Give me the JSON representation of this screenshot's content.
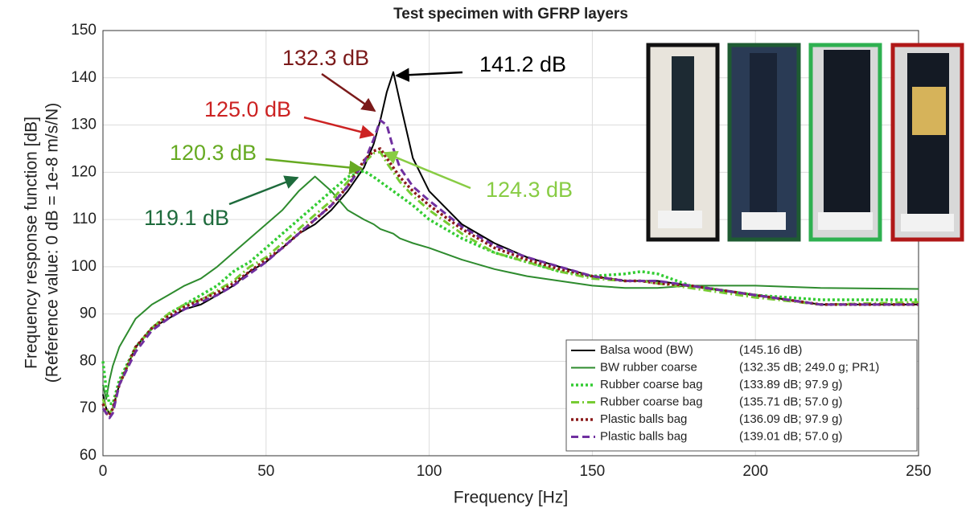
{
  "chart_data": {
    "type": "line",
    "title": "Test specimen with GFRP layers",
    "xlabel": "Frequency [Hz]",
    "ylabel": [
      "Frequency response function [dB]",
      "(Reference value: 0 dB = 1e-8 m/s/N)"
    ],
    "xlim": [
      0,
      250
    ],
    "ylim": [
      60,
      150
    ],
    "xticks": [
      0,
      50,
      100,
      150,
      200,
      250
    ],
    "yticks": [
      60,
      70,
      80,
      90,
      100,
      110,
      120,
      130,
      140,
      150
    ],
    "grid": true,
    "legend": "lower right",
    "x": [
      0,
      1,
      2,
      3,
      5,
      10,
      15,
      20,
      25,
      30,
      35,
      40,
      45,
      50,
      55,
      60,
      65,
      70,
      75,
      80,
      83,
      85,
      87,
      89,
      91,
      95,
      100,
      110,
      120,
      130,
      140,
      150,
      160,
      165,
      170,
      180,
      190,
      200,
      220,
      250
    ],
    "series": [
      {
        "name": "Balsa wood (BW)",
        "note": "(145.16 dB)",
        "color": "#000000",
        "style": "solid",
        "values": [
          73,
          70,
          69,
          70,
          75,
          83,
          87,
          89,
          91,
          92,
          94,
          96,
          99,
          101,
          104,
          107,
          109,
          112,
          116,
          121,
          126,
          131,
          137,
          141.2,
          135,
          123,
          116,
          109,
          105,
          102,
          100,
          98,
          97,
          97,
          97,
          96,
          95,
          94,
          92,
          92
        ]
      },
      {
        "name": "BW rubber coarse",
        "note": "(132.35 dB; 249.0 g; PR1)",
        "color": "#2e8b2e",
        "style": "solid",
        "values": [
          75,
          72,
          76,
          79,
          83,
          89,
          92,
          94,
          96,
          97.5,
          100,
          103,
          106,
          109,
          112,
          116,
          119.1,
          116,
          112,
          110,
          109,
          108,
          107.5,
          107,
          106,
          105,
          104,
          101.5,
          99.5,
          98,
          97,
          96,
          95.5,
          95.5,
          95.5,
          96,
          96,
          96,
          95.5,
          95.3
        ]
      },
      {
        "name": "Rubber coarse bag",
        "note": "(133.89 dB; 97.9 g)",
        "color": "#33cc33",
        "style": "dotted",
        "values": [
          80,
          74,
          71,
          71,
          76,
          83,
          87,
          90,
          92,
          94,
          96,
          99,
          101,
          104,
          107,
          110,
          113,
          116,
          119,
          120.3,
          119,
          118,
          117,
          116,
          115,
          113,
          110,
          106,
          103,
          101,
          99,
          98,
          98.5,
          99,
          98.5,
          96,
          95,
          94,
          93,
          93
        ]
      },
      {
        "name": "Rubber coarse bag",
        "note": "(135.71 dB; 57.0 g)",
        "color": "#77cc33",
        "style": "dashdot",
        "values": [
          72,
          70,
          69,
          70,
          75,
          83,
          87,
          90,
          92,
          93,
          95,
          97,
          100,
          102,
          105,
          108,
          111,
          114,
          118,
          122,
          124,
          124.3,
          122,
          120,
          118,
          115,
          112,
          107,
          103,
          101,
          99,
          97.5,
          97,
          97,
          96.5,
          95.5,
          94.5,
          93.5,
          92,
          92.5
        ]
      },
      {
        "name": "Plastic balls bag",
        "note": "(136.09 dB; 97.9 g)",
        "color": "#8b1a1a",
        "style": "dotted",
        "values": [
          71,
          69,
          68.5,
          70,
          75,
          83,
          87,
          89.5,
          91.5,
          93,
          94.5,
          96.5,
          99,
          101.5,
          104,
          107,
          110,
          113,
          117,
          122.5,
          124.5,
          125,
          123,
          121,
          119,
          116,
          113,
          108,
          104,
          101.5,
          99.5,
          98,
          97,
          97,
          96.5,
          96,
          95,
          94,
          92,
          92
        ]
      },
      {
        "name": "Plastic balls bag",
        "note": "(139.01 dB; 57.0 g)",
        "color": "#7030a0",
        "style": "dashed",
        "values": [
          70,
          69,
          68,
          69,
          75,
          82,
          86.5,
          89,
          91,
          92.5,
          94,
          96,
          98.5,
          101,
          104,
          107,
          110,
          113,
          117,
          122,
          127,
          131,
          130,
          125,
          121,
          117,
          114,
          108.5,
          104.5,
          102,
          100,
          98,
          97,
          97,
          97,
          96,
          95,
          94,
          92,
          92
        ]
      }
    ],
    "annotations": [
      {
        "text": "132.3 dB",
        "color": "#7b1a1a"
      },
      {
        "text": "141.2 dB",
        "color": "#000000"
      },
      {
        "text": "125.0 dB",
        "color": "#cc2222"
      },
      {
        "text": "120.3 dB",
        "color": "#66aa22"
      },
      {
        "text": "124.3 dB",
        "color": "#88cc44"
      },
      {
        "text": "119.1 dB",
        "color": "#1e6b3c"
      }
    ]
  }
}
